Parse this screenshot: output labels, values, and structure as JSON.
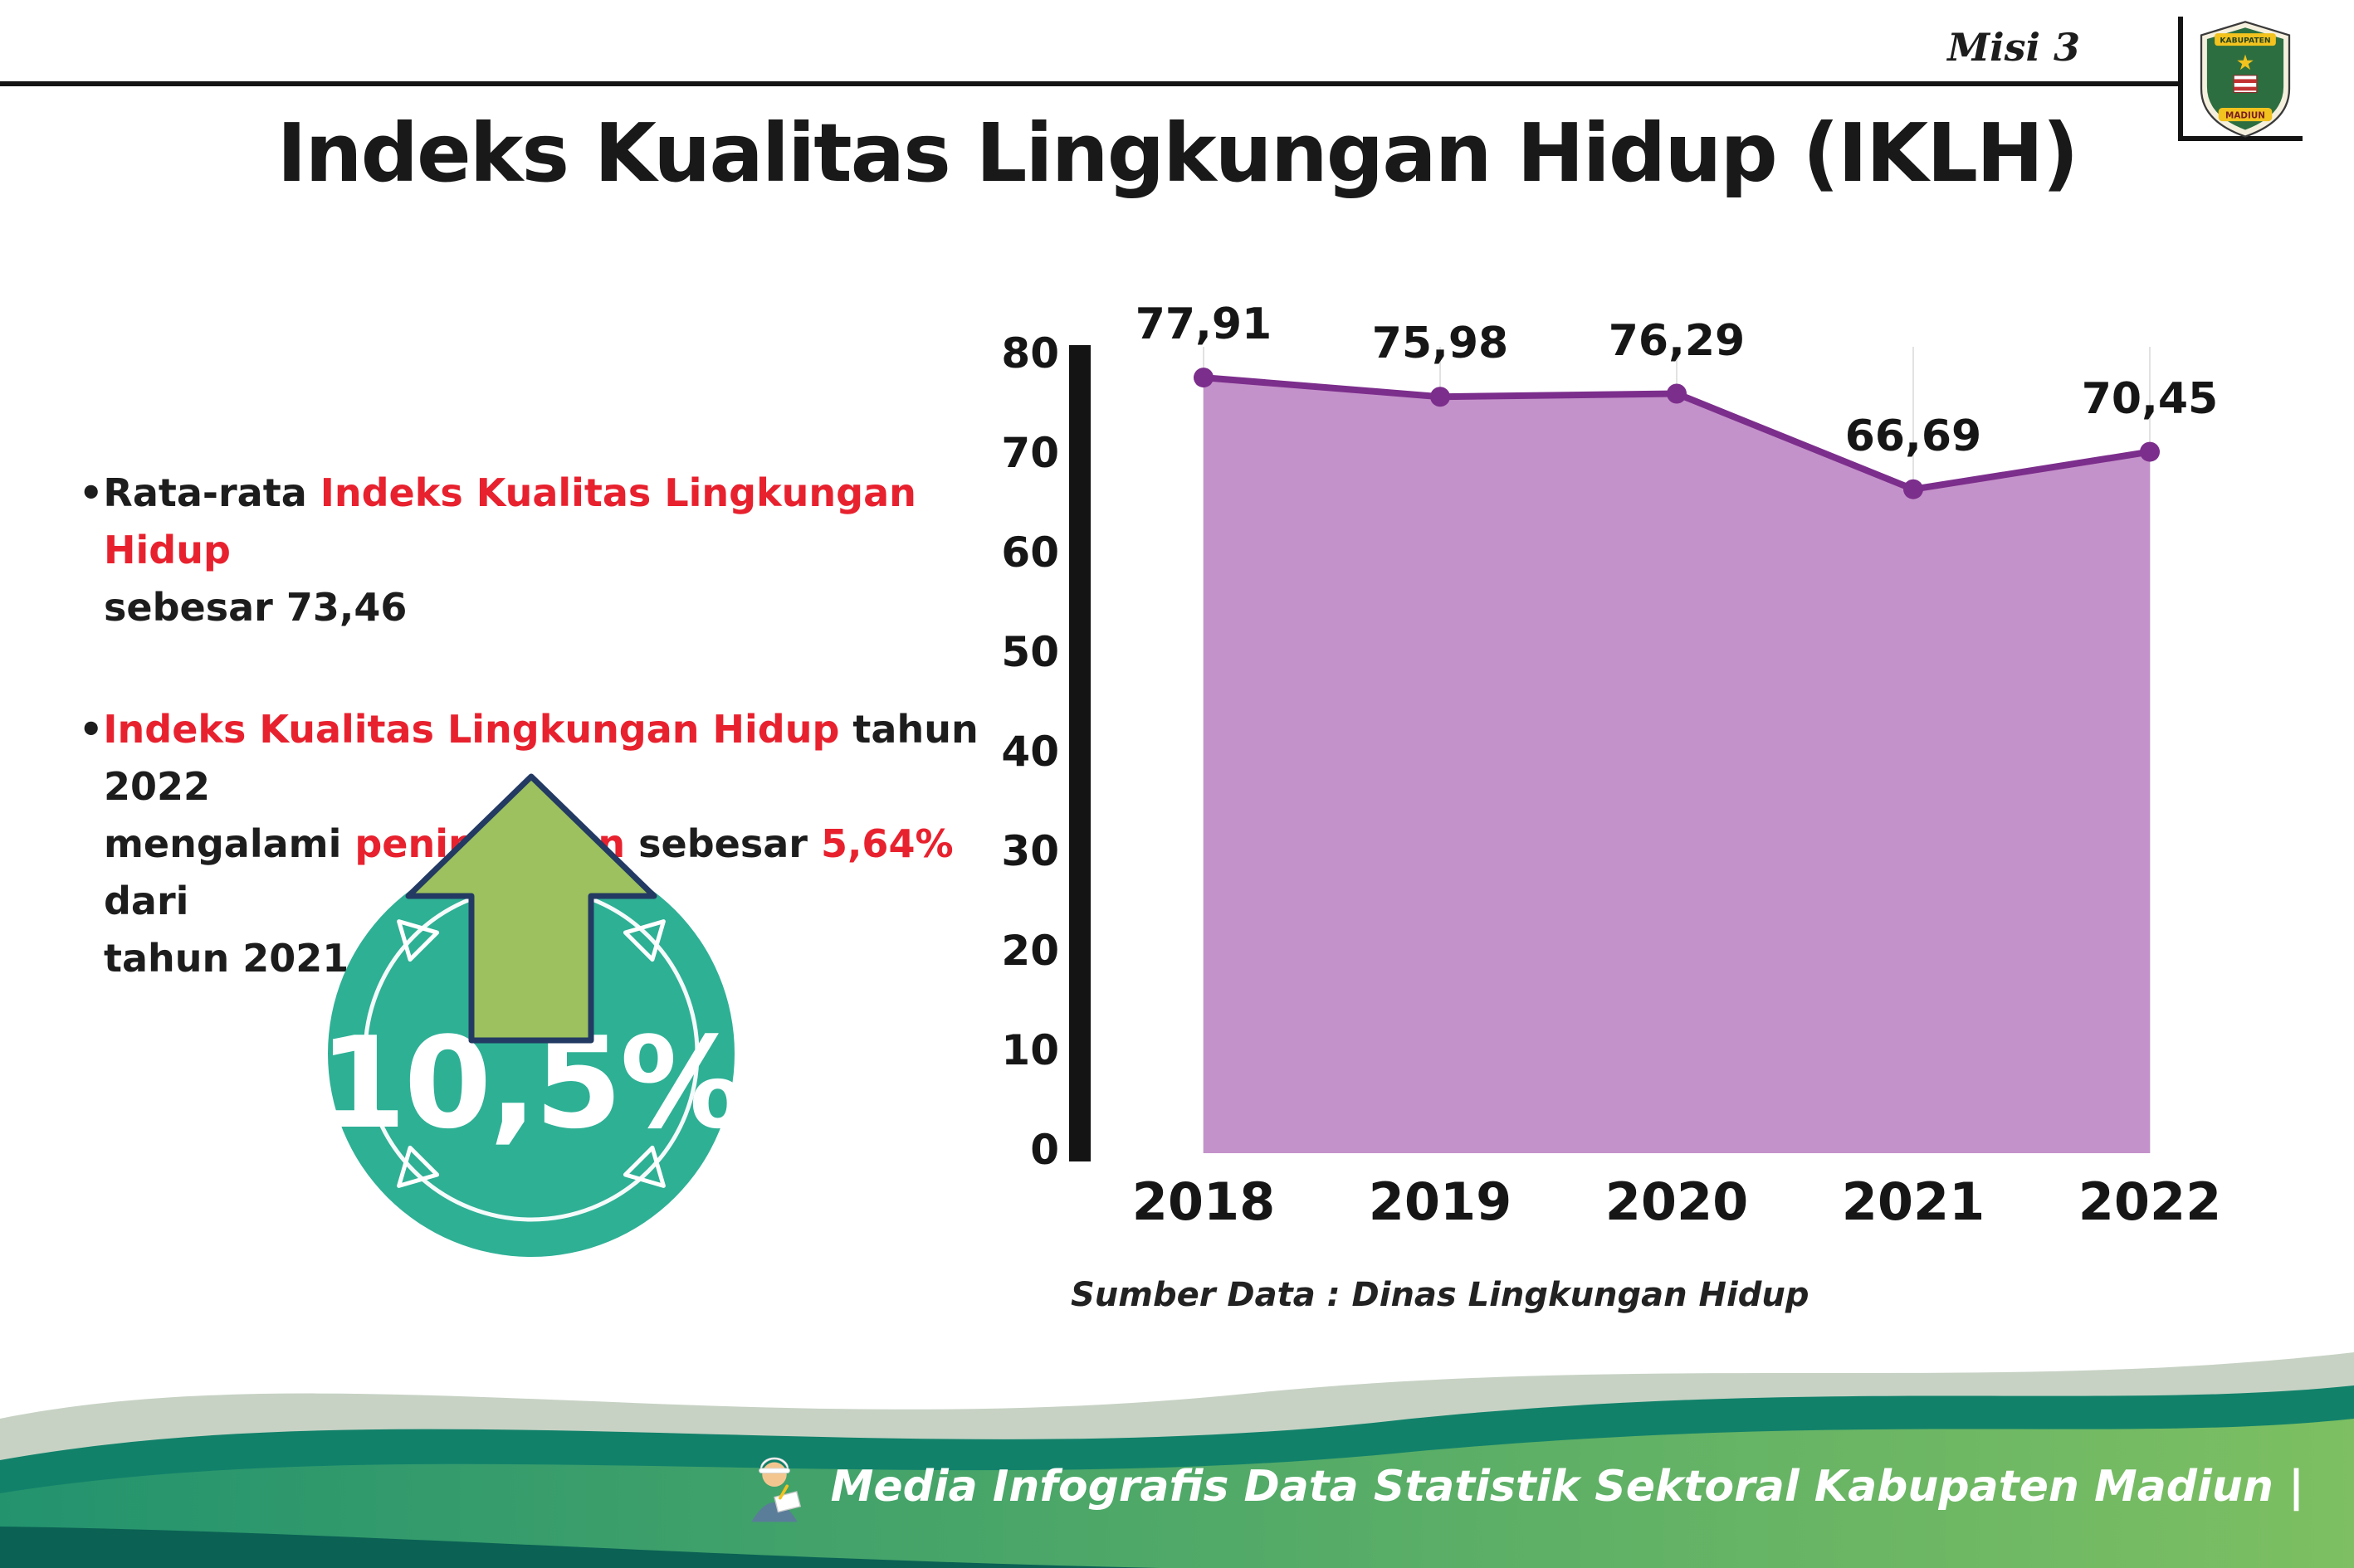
{
  "header": {
    "misi_label": "Misi 3",
    "title": "Indeks Kualitas Lingkungan Hidup (IKLH)",
    "logo": {
      "top_text": "KABUPATEN",
      "bottom_text": "MADIUN"
    }
  },
  "bullets": {
    "marker": "•",
    "item1": {
      "seg1": "Rata-rata ",
      "seg2_red": "Indeks Kualitas Lingkungan Hidup",
      "seg3": "\nsebesar 73,46"
    },
    "item2": {
      "seg1_red": "Indeks Kualitas Lingkungan Hidup",
      "seg2": " tahun 2022\nmengalami ",
      "seg3_red": "peningkatan",
      "seg4": " sebesar ",
      "seg5_red": "5,64%",
      "seg6": " dari\ntahun 2021"
    }
  },
  "increase_badge": {
    "value": "10,5%"
  },
  "chart_data": {
    "type": "area",
    "title": "Indeks Kualitas Lingkungan Hidup (IKLH)",
    "categories": [
      "2018",
      "2019",
      "2020",
      "2021",
      "2022"
    ],
    "values": [
      77.91,
      75.98,
      76.29,
      66.69,
      70.45
    ],
    "value_labels": [
      "77,91",
      "75,98",
      "76,29",
      "66,69",
      "70,45"
    ],
    "xlabel": "",
    "ylabel": "",
    "ylim": [
      0,
      80
    ],
    "ytick_step": 10,
    "yticks": [
      "0",
      "10",
      "20",
      "30",
      "40",
      "50",
      "60",
      "70",
      "80"
    ],
    "grid": "light-vertical",
    "legend": "none",
    "source": "Sumber Data : Dinas Lingkungan Hidup",
    "colors": {
      "area": "#c492ca",
      "line": "#7c2e8c",
      "marker": "#7c2e8c",
      "axis": "#141414"
    }
  },
  "footer": {
    "credit": "Media Infografis Data Statistik Sektoral Kabupaten Madiun |"
  },
  "colors": {
    "accent_red": "#e8212e",
    "badge_teal": "#2eb095",
    "arrow_green": "#9cc15e"
  }
}
